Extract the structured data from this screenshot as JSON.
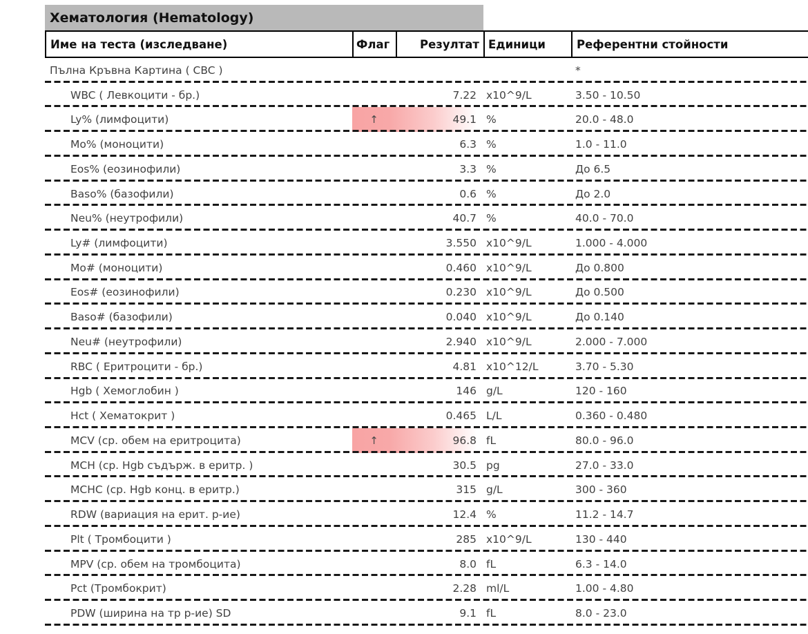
{
  "section": {
    "title": "Хематология (Hematology)"
  },
  "colors": {
    "section_bar_gray": "#b9b9b9",
    "flag_highlight_pink": "#f8a4a4",
    "dashed_line": "#181818"
  },
  "icons": {
    "flag_high_arrow": "↑"
  },
  "table": {
    "columns": {
      "name": "Име на теста (изследване)",
      "flag": "Флаг",
      "result": "Резултат",
      "units": "Единици",
      "reference": "Референтни стойности"
    },
    "rows": [
      {
        "group": true,
        "name": "Пълна Кръвна Картина ( CBC )",
        "flag": "",
        "result": "",
        "units": "",
        "reference": "*",
        "flagged": false
      },
      {
        "group": false,
        "name": "WBC ( Левкоцити - бр.)",
        "flag": "",
        "result": "7.22",
        "units": "x10^9/L",
        "reference": "3.50 - 10.50",
        "flagged": false
      },
      {
        "group": false,
        "name": "Ly% (лимфоцити)",
        "flag": "↑",
        "result": "49.1",
        "units": "%",
        "reference": "20.0 - 48.0",
        "flagged": true
      },
      {
        "group": false,
        "name": "Mo% (моноцити)",
        "flag": "",
        "result": "6.3",
        "units": "%",
        "reference": "1.0 - 11.0",
        "flagged": false
      },
      {
        "group": false,
        "name": "Eos% (еозинофили)",
        "flag": "",
        "result": "3.3",
        "units": "%",
        "reference": "До 6.5",
        "flagged": false
      },
      {
        "group": false,
        "name": "Baso% (базофили)",
        "flag": "",
        "result": "0.6",
        "units": "%",
        "reference": "До 2.0",
        "flagged": false
      },
      {
        "group": false,
        "name": "Neu% (неутрофили)",
        "flag": "",
        "result": "40.7",
        "units": "%",
        "reference": "40.0 - 70.0",
        "flagged": false
      },
      {
        "group": false,
        "name": "Ly# (лимфоцити)",
        "flag": "",
        "result": "3.550",
        "units": "x10^9/L",
        "reference": "1.000 - 4.000",
        "flagged": false
      },
      {
        "group": false,
        "name": "Mo# (моноцити)",
        "flag": "",
        "result": "0.460",
        "units": "x10^9/L",
        "reference": "До 0.800",
        "flagged": false
      },
      {
        "group": false,
        "name": "Eos# (еозинофили)",
        "flag": "",
        "result": "0.230",
        "units": "x10^9/L",
        "reference": "До 0.500",
        "flagged": false
      },
      {
        "group": false,
        "name": "Baso# (базофили)",
        "flag": "",
        "result": "0.040",
        "units": "x10^9/L",
        "reference": "До 0.140",
        "flagged": false
      },
      {
        "group": false,
        "name": "Neu# (неутрофили)",
        "flag": "",
        "result": "2.940",
        "units": "x10^9/L",
        "reference": "2.000 - 7.000",
        "flagged": false
      },
      {
        "group": false,
        "name": "RBC ( Еритроцити - бр.)",
        "flag": "",
        "result": "4.81",
        "units": "x10^12/L",
        "reference": "3.70 - 5.30",
        "flagged": false
      },
      {
        "group": false,
        "name": "Hgb ( Хемоглобин )",
        "flag": "",
        "result": "146",
        "units": "g/L",
        "reference": "120 - 160",
        "flagged": false
      },
      {
        "group": false,
        "name": "Hct ( Хематокрит )",
        "flag": "",
        "result": "0.465",
        "units": "L/L",
        "reference": "0.360 - 0.480",
        "flagged": false
      },
      {
        "group": false,
        "name": "MCV (ср. обем на еритроцита)",
        "flag": "↑",
        "result": "96.8",
        "units": "fL",
        "reference": "80.0 - 96.0",
        "flagged": true
      },
      {
        "group": false,
        "name": "MCH (ср. Hgb съдърж. в еритр. )",
        "flag": "",
        "result": "30.5",
        "units": "pg",
        "reference": "27.0 - 33.0",
        "flagged": false
      },
      {
        "group": false,
        "name": "MCHC (ср. Hgb конц. в еритр.)",
        "flag": "",
        "result": "315",
        "units": "g/L",
        "reference": "300 - 360",
        "flagged": false
      },
      {
        "group": false,
        "name": "RDW (вариация на ерит. р-ие)",
        "flag": "",
        "result": "12.4",
        "units": "%",
        "reference": "11.2 - 14.7",
        "flagged": false
      },
      {
        "group": false,
        "name": "Plt ( Тромбоцити )",
        "flag": "",
        "result": "285",
        "units": "x10^9/L",
        "reference": "130 - 440",
        "flagged": false
      },
      {
        "group": false,
        "name": "MPV (ср. обем на тромбоцита)",
        "flag": "",
        "result": "8.0",
        "units": "fL",
        "reference": "6.3 - 14.0",
        "flagged": false
      },
      {
        "group": false,
        "name": "Pct (Тромбокрит)",
        "flag": "",
        "result": "2.28",
        "units": "ml/L",
        "reference": "1.00 - 4.80",
        "flagged": false
      },
      {
        "group": false,
        "name": "PDW (ширина на тр р-ие) SD",
        "flag": "",
        "result": "9.1",
        "units": "fL",
        "reference": "8.0 - 23.0",
        "flagged": false
      }
    ]
  }
}
